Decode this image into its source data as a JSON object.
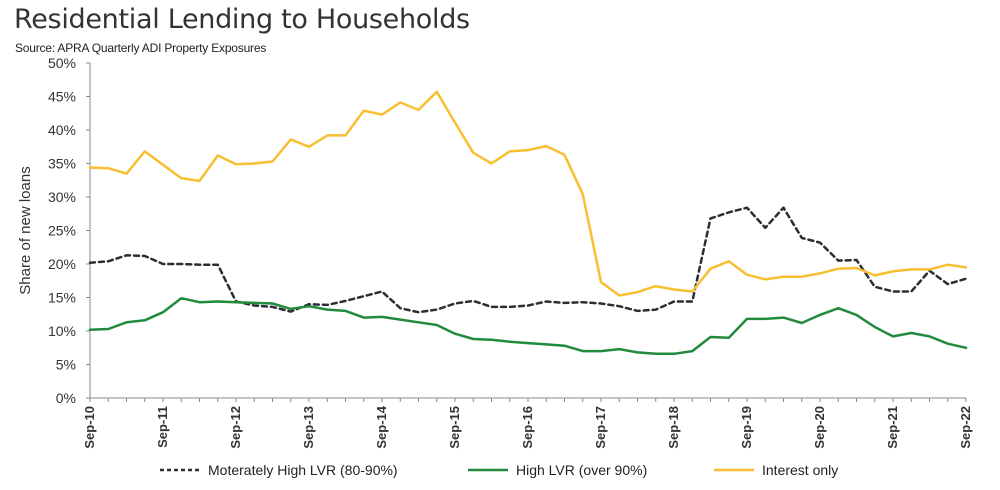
{
  "chart_data": {
    "type": "line",
    "title": "Residential Lending to Households",
    "subtitle": "Source: APRA Quarterly ADI Property Exposures",
    "ylabel": "Share of new loans",
    "xlabel": "",
    "ylim": [
      0,
      50
    ],
    "yticks": [
      "0%",
      "5%",
      "10%",
      "15%",
      "20%",
      "25%",
      "30%",
      "35%",
      "40%",
      "45%",
      "50%"
    ],
    "ytick_values": [
      0,
      5,
      10,
      15,
      20,
      25,
      30,
      35,
      40,
      45,
      50
    ],
    "xtick_labels": [
      "Sep-10",
      "Sep-11",
      "Sep-12",
      "Sep-13",
      "Sep-14",
      "Sep-15",
      "Sep-16",
      "Sep-17",
      "Sep-18",
      "Sep-19",
      "Sep-20",
      "Sep-21",
      "Sep-22"
    ],
    "xtick_index": [
      0,
      4,
      8,
      12,
      16,
      20,
      24,
      28,
      32,
      36,
      40,
      44,
      48
    ],
    "n_points": 49,
    "series": [
      {
        "name": "Moterately High LVR (80-90%)",
        "color": "#2b2f33",
        "dash": true,
        "values": [
          20.2,
          20.4,
          21.3,
          21.2,
          20.0,
          20.0,
          19.9,
          19.9,
          14.4,
          13.8,
          13.6,
          12.9,
          14.0,
          13.9,
          14.5,
          15.2,
          15.9,
          13.4,
          12.8,
          13.2,
          14.1,
          14.5,
          13.6,
          13.6,
          13.8,
          14.4,
          14.2,
          14.3,
          14.1,
          13.7,
          13.0,
          13.2,
          14.4,
          14.4,
          26.8,
          27.7,
          28.4,
          25.4,
          28.4,
          23.9,
          23.2,
          20.5,
          20.6,
          16.6,
          15.9,
          15.9,
          19.0,
          17.0,
          17.8
        ]
      },
      {
        "name": "High LVR (over 90%)",
        "color": "#218a3c",
        "dash": false,
        "values": [
          10.2,
          10.3,
          11.3,
          11.6,
          12.8,
          14.9,
          14.3,
          14.4,
          14.3,
          14.2,
          14.1,
          13.3,
          13.7,
          13.2,
          13.0,
          12.0,
          12.1,
          11.7,
          11.3,
          10.9,
          9.6,
          8.8,
          8.7,
          8.4,
          8.2,
          8.0,
          7.8,
          7.0,
          7.0,
          7.3,
          6.8,
          6.6,
          6.6,
          7.0,
          9.1,
          9.0,
          11.8,
          11.8,
          12.0,
          11.2,
          12.4,
          13.4,
          12.4,
          10.6,
          9.2,
          9.7,
          9.2,
          8.1,
          7.5
        ]
      },
      {
        "name": "Interest only",
        "color": "#f7bf31",
        "dash": false,
        "values": [
          34.4,
          34.3,
          33.5,
          36.8,
          34.8,
          32.8,
          32.4,
          36.2,
          34.9,
          35.0,
          35.3,
          38.6,
          37.5,
          39.2,
          39.2,
          42.9,
          42.3,
          44.1,
          43.0,
          45.7,
          41.1,
          36.6,
          35.0,
          36.8,
          37.0,
          37.6,
          36.3,
          30.4,
          17.3,
          15.3,
          15.8,
          16.7,
          16.2,
          15.9,
          19.3,
          20.4,
          18.4,
          17.7,
          18.1,
          18.1,
          18.6,
          19.3,
          19.4,
          18.3,
          18.9,
          19.2,
          19.2,
          19.9,
          19.5
        ]
      }
    ],
    "legend_position": "bottom",
    "grid": false
  }
}
